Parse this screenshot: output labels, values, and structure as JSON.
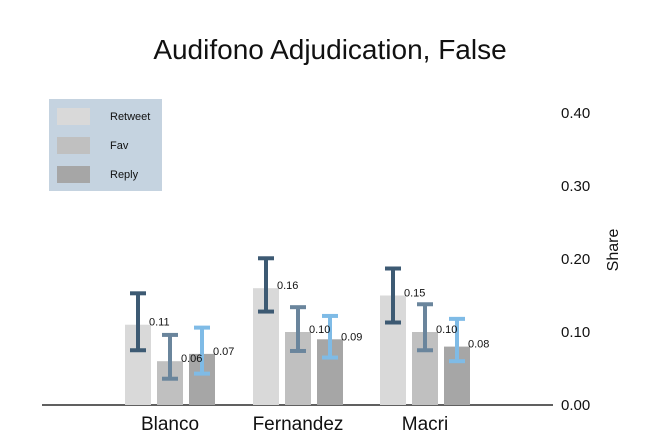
{
  "chart_data": {
    "type": "bar",
    "title": "Audifono Adjudication, False",
    "ylabel": "Share",
    "xlabel": "",
    "categories": [
      "Blanco",
      "Fernandez",
      "Macri"
    ],
    "ylim": [
      0,
      0.4
    ],
    "yticks": [
      "0.00",
      "0.10",
      "0.20",
      "0.30",
      "0.40"
    ],
    "yaxis_position": "right",
    "legend_position": "top-left",
    "grid": false,
    "series": [
      {
        "name": "Retweet",
        "values": [
          0.11,
          0.16,
          0.15
        ],
        "labels": [
          "0.11",
          "0.16",
          "0.15"
        ],
        "ci_low": [
          0.075,
          0.128,
          0.113
        ],
        "ci_high": [
          0.153,
          0.201,
          0.187
        ],
        "color": "#d9d9d9",
        "error_color": "#3d5a73"
      },
      {
        "name": "Fav",
        "values": [
          0.06,
          0.1,
          0.1
        ],
        "labels": [
          "0.06",
          "0.10",
          "0.10"
        ],
        "ci_low": [
          0.036,
          0.074,
          0.075
        ],
        "ci_high": [
          0.096,
          0.134,
          0.138
        ],
        "color": "#c0c0c0",
        "error_color": "#6a859c"
      },
      {
        "name": "Reply",
        "values": [
          0.07,
          0.09,
          0.08
        ],
        "labels": [
          "0.07",
          "0.09",
          "0.08"
        ],
        "ci_low": [
          0.043,
          0.065,
          0.06
        ],
        "ci_high": [
          0.106,
          0.122,
          0.118
        ],
        "color": "#a6a6a6",
        "error_color": "#7fbbe6"
      }
    ],
    "legend_background": "#c5d3e0"
  }
}
